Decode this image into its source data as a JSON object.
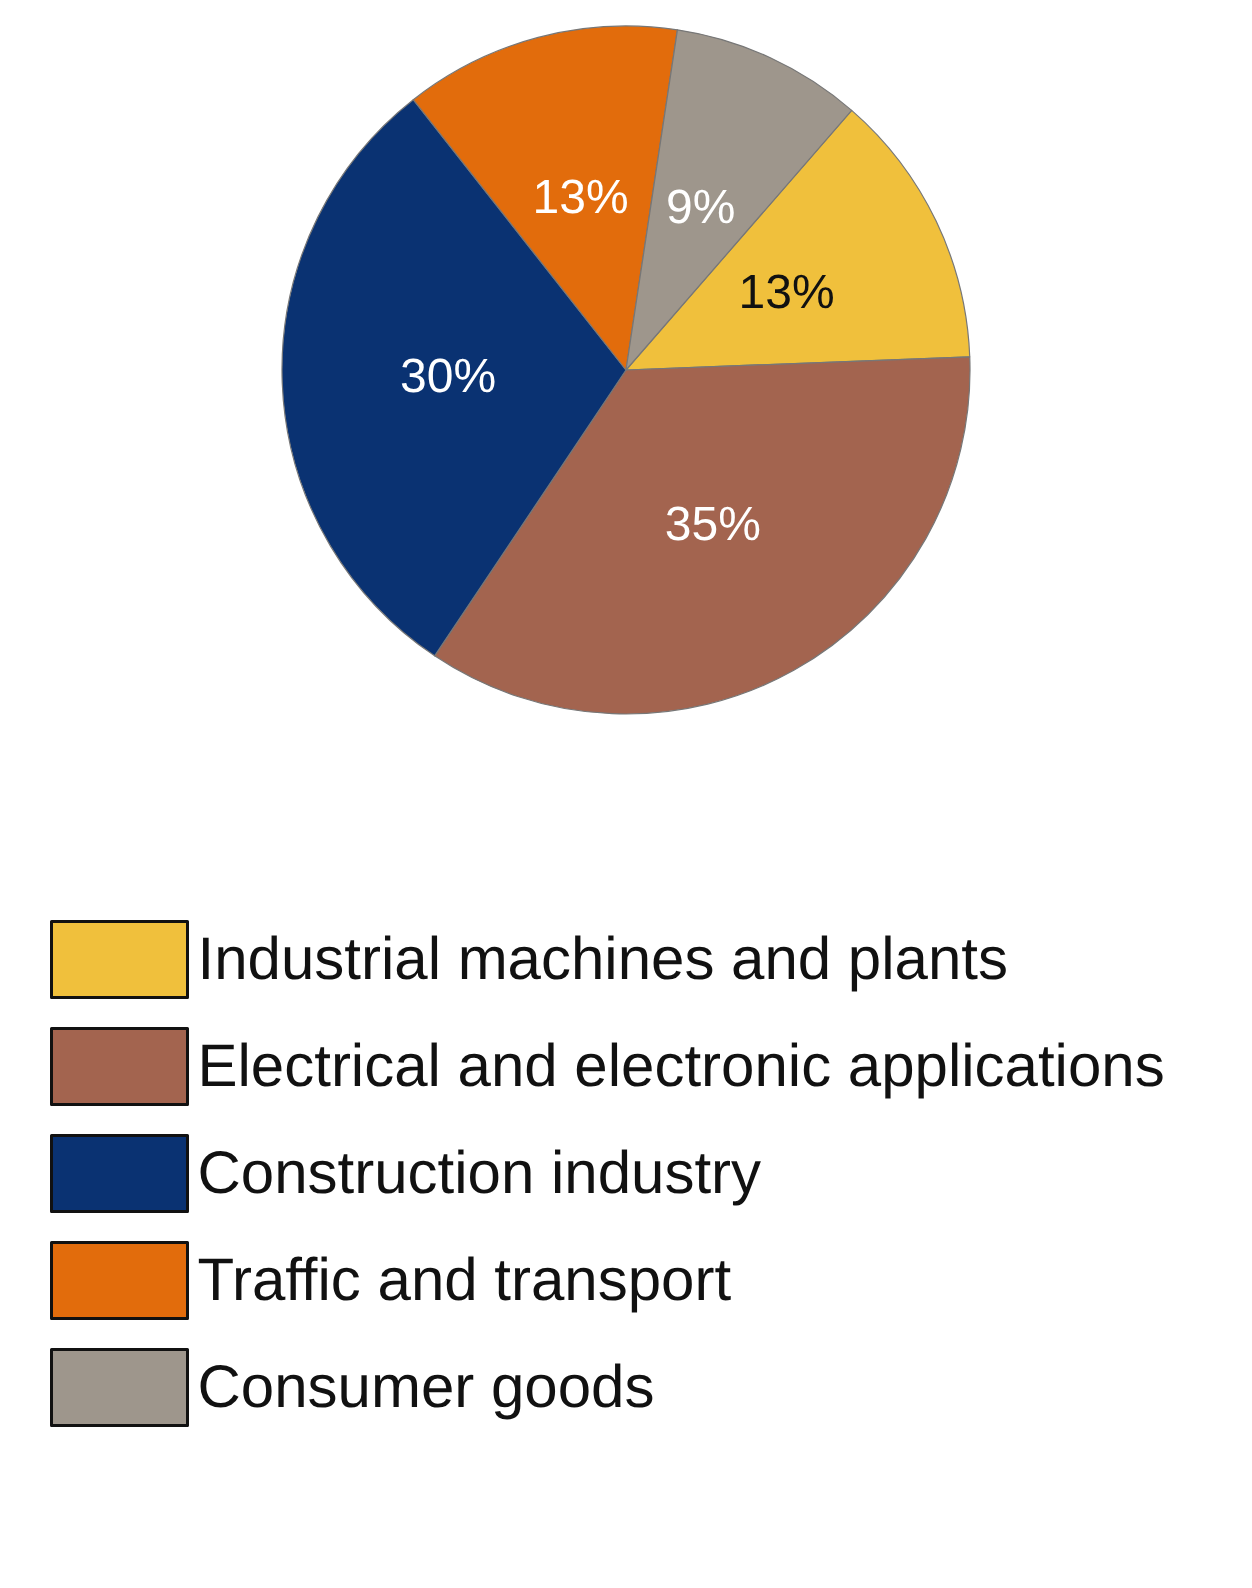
{
  "chart_data": {
    "type": "pie",
    "categories": [
      "Industrial machines and plants",
      "Electrical and electronic applications",
      "Construction industry",
      "Traffic and transport",
      "Consumer goods"
    ],
    "values": [
      13,
      35,
      30,
      13,
      9
    ],
    "value_labels": [
      "13%",
      "35%",
      "30%",
      "13%",
      "9%"
    ],
    "colors": [
      "#f0c03c",
      "#a3644f",
      "#0a3272",
      "#e26c0c",
      "#9e968c"
    ],
    "legend": "bottom"
  }
}
